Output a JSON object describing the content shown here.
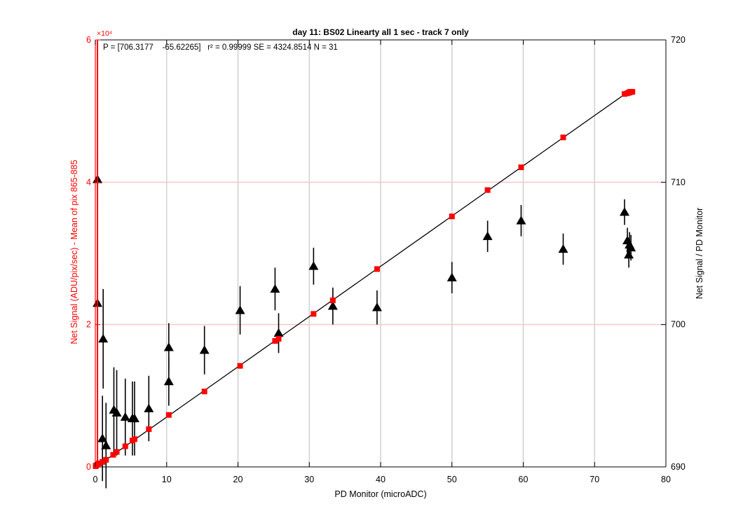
{
  "colors": {
    "left_axis": "#ff0000",
    "right_axis": "#000000",
    "linear_series": "#ff0000",
    "ratio_series": "#000000",
    "fit_line": "#000000",
    "xgrid": "#d0d0d0",
    "ygrid": "#ffc8c8"
  },
  "chart_data": {
    "type": "scatter",
    "title": "day 11: BS02   Linearty all 1 sec - track 7 only",
    "fit_text": "P = [706.3177    -65.62265]   r² = 0.99999 SE = 4324.8514 N = 31",
    "xlabel": "PD Monitor (microADC)",
    "ylabel_left": "Net Signal (ADU/pix/sec) - Mean of pix 865-885",
    "ylabel_right": "Net Signal / PD Monitor",
    "xlim": [
      0,
      80
    ],
    "ylim_left": [
      0,
      60000
    ],
    "ylim_right": [
      690,
      720
    ],
    "left_exponent_label": "×10⁴",
    "xticks": [
      0,
      10,
      20,
      30,
      40,
      50,
      60,
      70,
      80
    ],
    "left_ticks": [
      0,
      2,
      4,
      6
    ],
    "right_ticks": [
      690,
      700,
      710,
      720
    ],
    "grid": {
      "x": true,
      "y_left": true
    },
    "fit": {
      "slope": 706.3177,
      "intercept": -65.62265,
      "x_range": [
        0,
        75
      ]
    },
    "series": [
      {
        "axis": "left",
        "marker": "square",
        "color": "#ff0000",
        "points": [
          {
            "x": 0.05,
            "y": 100
          },
          {
            "x": 0.1,
            "y": 200
          },
          {
            "x": 0.3,
            "y": 300
          },
          {
            "x": 0.5,
            "y": 500
          },
          {
            "x": 1.0,
            "y": 700
          },
          {
            "x": 1.5,
            "y": 1000
          },
          {
            "x": 2.5,
            "y": 1700
          },
          {
            "x": 3.0,
            "y": 2100
          },
          {
            "x": 4.2,
            "y": 2900
          },
          {
            "x": 5.2,
            "y": 3700
          },
          {
            "x": 5.5,
            "y": 3900
          },
          {
            "x": 7.5,
            "y": 5300
          },
          {
            "x": 10.3,
            "y": 7300
          },
          {
            "x": 15.3,
            "y": 10600
          },
          {
            "x": 20.3,
            "y": 14200
          },
          {
            "x": 25.2,
            "y": 17700
          },
          {
            "x": 25.7,
            "y": 18000
          },
          {
            "x": 30.6,
            "y": 21500
          },
          {
            "x": 33.3,
            "y": 23400
          },
          {
            "x": 39.5,
            "y": 27800
          },
          {
            "x": 50.0,
            "y": 35200
          },
          {
            "x": 55.0,
            "y": 38900
          },
          {
            "x": 59.7,
            "y": 42100
          },
          {
            "x": 65.6,
            "y": 46300
          },
          {
            "x": 74.2,
            "y": 52400
          },
          {
            "x": 74.6,
            "y": 52500
          },
          {
            "x": 74.8,
            "y": 52600
          },
          {
            "x": 74.9,
            "y": 52600
          },
          {
            "x": 75.0,
            "y": 52700
          },
          {
            "x": 75.1,
            "y": 52700
          },
          {
            "x": 75.3,
            "y": 52700
          }
        ]
      },
      {
        "axis": "right",
        "marker": "triangle",
        "color": "#000000",
        "points": [
          {
            "x": 0.3,
            "y": 710.2,
            "err": 2.2
          },
          {
            "x": 0.3,
            "y": 701.5,
            "err": 2.6
          },
          {
            "x": 1.0,
            "y": 692.0,
            "err": 3.0
          },
          {
            "x": 1.1,
            "y": 699.0,
            "err": 3.5
          },
          {
            "x": 1.5,
            "y": 691.5,
            "err": 3.0
          },
          {
            "x": 2.6,
            "y": 694.0,
            "err": 3.0
          },
          {
            "x": 3.0,
            "y": 693.8,
            "err": 3.0
          },
          {
            "x": 4.2,
            "y": 693.5,
            "err": 2.7
          },
          {
            "x": 5.2,
            "y": 693.4,
            "err": 2.6
          },
          {
            "x": 5.5,
            "y": 693.4,
            "err": 2.6
          },
          {
            "x": 7.5,
            "y": 694.1,
            "err": 2.3
          },
          {
            "x": 10.3,
            "y": 698.4,
            "err": 1.7
          },
          {
            "x": 10.3,
            "y": 696.0,
            "err": 1.7
          },
          {
            "x": 15.3,
            "y": 698.2,
            "err": 1.7
          },
          {
            "x": 20.3,
            "y": 701.0,
            "err": 1.7
          },
          {
            "x": 25.2,
            "y": 702.5,
            "err": 1.5
          },
          {
            "x": 25.7,
            "y": 699.4,
            "err": 1.4
          },
          {
            "x": 30.6,
            "y": 704.1,
            "err": 1.3
          },
          {
            "x": 33.3,
            "y": 701.3,
            "err": 1.3
          },
          {
            "x": 39.5,
            "y": 701.2,
            "err": 1.2
          },
          {
            "x": 50.0,
            "y": 703.3,
            "err": 1.1
          },
          {
            "x": 55.0,
            "y": 706.2,
            "err": 1.1
          },
          {
            "x": 59.7,
            "y": 707.3,
            "err": 1.1
          },
          {
            "x": 65.6,
            "y": 705.3,
            "err": 1.1
          },
          {
            "x": 74.2,
            "y": 707.9,
            "err": 0.9
          },
          {
            "x": 74.6,
            "y": 705.9,
            "err": 0.9
          },
          {
            "x": 74.8,
            "y": 704.9,
            "err": 0.9
          },
          {
            "x": 74.9,
            "y": 705.6,
            "err": 0.9
          },
          {
            "x": 75.1,
            "y": 705.4,
            "err": 0.9
          }
        ]
      }
    ]
  }
}
